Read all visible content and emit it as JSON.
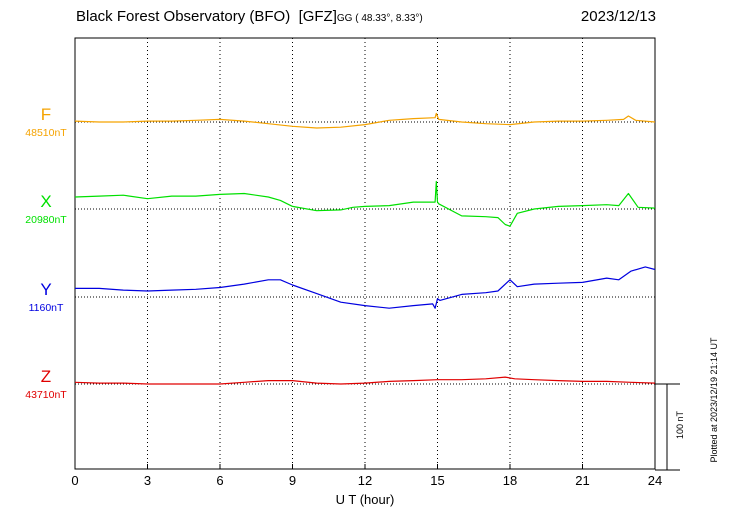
{
  "header": {
    "station": "Black Forest Observatory (BFO)",
    "institution": "[GFZ]",
    "coords": "GG ( 48.33°,   8.33°)",
    "date": "2023/12/13"
  },
  "plotted_note": "Plotted at 2023/12/19 21:14 UT",
  "scale_label": "100 nT",
  "chart_data": {
    "type": "line",
    "title": "Black Forest Observatory (BFO)",
    "xlabel": "U T (hour)",
    "ylabel": "",
    "xlim": [
      0,
      24
    ],
    "xticks": [
      0,
      3,
      6,
      9,
      12,
      15,
      18,
      21,
      24
    ],
    "xtick_labels": [
      "0",
      "3",
      "6",
      "9",
      "12",
      "15",
      "18",
      "21",
      "24"
    ],
    "grid": true,
    "scale_bar_nT": 100,
    "series": [
      {
        "name": "F",
        "baseline_label": "48510nT",
        "baseline_nT": 48510,
        "color": "#f5a300",
        "x": [
          0,
          1,
          2,
          3,
          4,
          5,
          6,
          7,
          8,
          9,
          10,
          11,
          12,
          13,
          14,
          14.9,
          14.95,
          15.05,
          16,
          17,
          18,
          19,
          20,
          21,
          22,
          22.7,
          22.9,
          23.2,
          24
        ],
        "y": [
          1,
          0,
          0,
          1,
          1,
          2,
          3,
          1,
          -2,
          -5,
          -7,
          -6,
          -3,
          2,
          4,
          5,
          10,
          3,
          0,
          -2,
          -3,
          0,
          1,
          1,
          2,
          3,
          7,
          2,
          0
        ]
      },
      {
        "name": "X",
        "baseline_label": "20980nT",
        "baseline_nT": 20980,
        "color": "#00e000",
        "x": [
          0,
          1,
          2,
          3,
          4,
          5,
          6,
          7,
          8,
          8.5,
          9,
          10,
          11,
          11.5,
          12,
          13,
          14,
          14.9,
          14.95,
          15.0,
          15.05,
          16,
          17,
          17.5,
          17.8,
          18.0,
          18.3,
          19,
          20,
          21,
          22,
          22.5,
          22.9,
          23.3,
          24
        ],
        "y": [
          14,
          15,
          16,
          12,
          15,
          15,
          17,
          18,
          14,
          10,
          3,
          -2,
          -1,
          2,
          3,
          4,
          8,
          8,
          32,
          8,
          6,
          -8,
          -9,
          -10,
          -18,
          -20,
          -5,
          0,
          3,
          4,
          5,
          4,
          18,
          2,
          1
        ]
      },
      {
        "name": "Y",
        "baseline_label": "1160nT",
        "baseline_nT": 1160,
        "color": "#0000e0",
        "x": [
          0,
          1,
          2,
          3,
          4,
          5,
          6,
          7,
          8,
          8.5,
          9,
          10,
          11,
          12,
          13,
          14,
          14.8,
          14.9,
          15.0,
          15.1,
          16,
          17,
          17.5,
          18,
          18.3,
          19,
          20,
          21,
          22,
          22.5,
          23,
          23.6,
          24
        ],
        "y": [
          10,
          10,
          8,
          7,
          8,
          9,
          11,
          15,
          20,
          20,
          14,
          4,
          -6,
          -10,
          -13,
          -10,
          -8,
          -13,
          -2,
          -4,
          3,
          5,
          7,
          20,
          12,
          15,
          16,
          17,
          22,
          20,
          30,
          35,
          32
        ]
      },
      {
        "name": "Z",
        "baseline_label": "43710nT",
        "baseline_nT": 43710,
        "color": "#e00000",
        "x": [
          0,
          1,
          2,
          3,
          4,
          5,
          6,
          7,
          8,
          9,
          10,
          11,
          12,
          13,
          14,
          15,
          16,
          17,
          17.8,
          18.2,
          19,
          20,
          21,
          22,
          23,
          24
        ],
        "y": [
          2,
          1,
          1,
          0,
          0,
          0,
          0,
          2,
          4,
          4,
          1,
          0,
          1,
          3,
          4,
          5,
          5,
          6,
          8,
          6,
          5,
          4,
          3,
          3,
          2,
          1
        ]
      }
    ]
  }
}
